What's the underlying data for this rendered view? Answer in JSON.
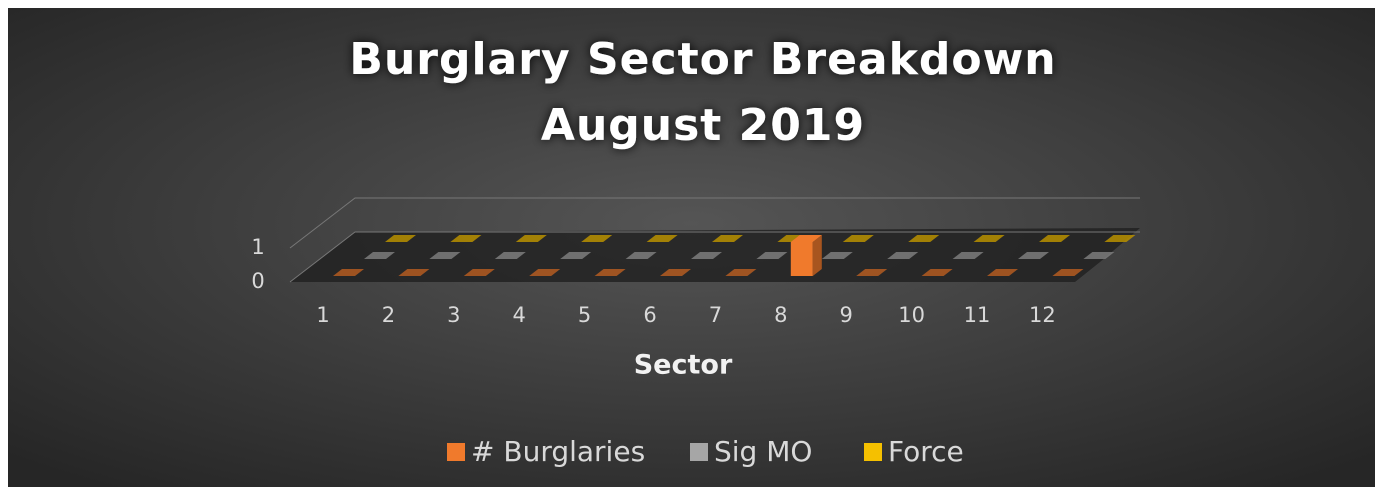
{
  "chart_data": {
    "type": "bar3d",
    "title": [
      "Burglary Sector Breakdown",
      "August 2019"
    ],
    "x_label": "Sector",
    "categories": [
      "1",
      "2",
      "3",
      "4",
      "5",
      "6",
      "7",
      "8",
      "9",
      "10",
      "11",
      "12"
    ],
    "series": [
      {
        "name": "# Burglaries",
        "color": "#f07a2c",
        "values": [
          0,
          0,
          0,
          0,
          0,
          0,
          0,
          1,
          0,
          0,
          0,
          0
        ]
      },
      {
        "name": "Sig MO",
        "color": "#a6a6a6",
        "values": [
          0,
          0,
          0,
          0,
          0,
          0,
          0,
          0,
          0,
          0,
          0,
          0
        ]
      },
      {
        "name": "Force",
        "color": "#f5c000",
        "values": [
          0,
          0,
          0,
          0,
          0,
          0,
          0,
          0,
          0,
          0,
          0,
          0
        ]
      }
    ],
    "ylim": [
      0,
      1
    ],
    "yticks": [
      0,
      1
    ],
    "grid": true,
    "legend": "bottom"
  }
}
